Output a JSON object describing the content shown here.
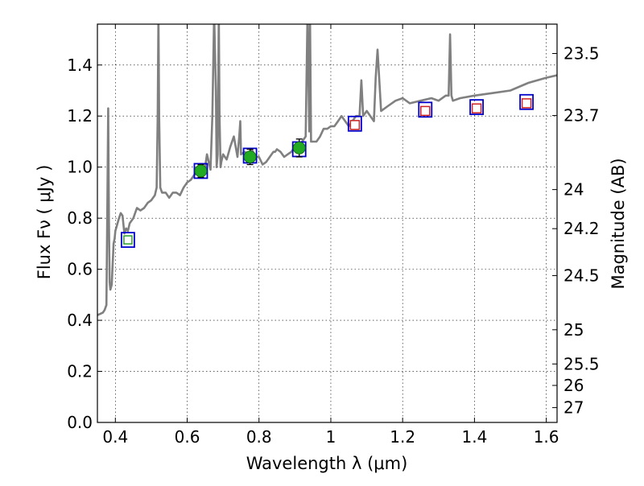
{
  "chart_data": {
    "type": "line",
    "title": "",
    "xlabel": "Wavelength  λ (μm)",
    "ylabel": "Flux  Fν  ( μJy )",
    "y2label": "Magnitude (AB)",
    "xlim": [
      0.35,
      1.63
    ],
    "ylim": [
      0.0,
      1.56
    ],
    "grid": true,
    "x_ticks": [
      "0.4",
      "0.6",
      "0.8",
      "1",
      "1.2",
      "1.4",
      "1.6"
    ],
    "x_tick_values": [
      0.4,
      0.6,
      0.8,
      1.0,
      1.2,
      1.4,
      1.6
    ],
    "y_ticks": [
      "0.0",
      "0.2",
      "0.4",
      "0.6",
      "0.8",
      "1.0",
      "1.2",
      "1.4"
    ],
    "y_tick_values": [
      0.0,
      0.2,
      0.4,
      0.6,
      0.8,
      1.0,
      1.2,
      1.4
    ],
    "mag_ticks": [
      {
        "label": "23.5",
        "flux": 1.445
      },
      {
        "label": "23.7",
        "flux": 1.202
      },
      {
        "label": "24",
        "flux": 0.912
      },
      {
        "label": "24.2",
        "flux": 0.759
      },
      {
        "label": "24.5",
        "flux": 0.575
      },
      {
        "label": "25",
        "flux": 0.363
      },
      {
        "label": "25.5",
        "flux": 0.229
      },
      {
        "label": "26",
        "flux": 0.145
      },
      {
        "label": "27",
        "flux": 0.058
      }
    ],
    "series": [
      {
        "name": "model spectrum",
        "color": "#808080",
        "x": [
          0.35,
          0.365,
          0.37,
          0.375,
          0.378,
          0.38,
          0.382,
          0.384,
          0.386,
          0.388,
          0.39,
          0.395,
          0.398,
          0.4,
          0.41,
          0.415,
          0.42,
          0.425,
          0.43,
          0.435,
          0.44,
          0.45,
          0.46,
          0.47,
          0.48,
          0.49,
          0.5,
          0.51,
          0.515,
          0.518,
          0.52,
          0.522,
          0.525,
          0.53,
          0.54,
          0.55,
          0.56,
          0.57,
          0.58,
          0.59,
          0.6,
          0.61,
          0.62,
          0.63,
          0.64,
          0.65,
          0.655,
          0.66,
          0.665,
          0.67,
          0.675,
          0.68,
          0.682,
          0.685,
          0.688,
          0.69,
          0.693,
          0.695,
          0.7,
          0.71,
          0.72,
          0.73,
          0.74,
          0.745,
          0.748,
          0.75,
          0.76,
          0.77,
          0.78,
          0.79,
          0.8,
          0.81,
          0.82,
          0.83,
          0.84,
          0.845,
          0.85,
          0.86,
          0.87,
          0.88,
          0.89,
          0.9,
          0.91,
          0.92,
          0.93,
          0.935,
          0.94,
          0.942,
          0.945,
          0.95,
          0.96,
          0.97,
          0.98,
          0.99,
          1.0,
          1.01,
          1.02,
          1.03,
          1.05,
          1.07,
          1.08,
          1.085,
          1.09,
          1.1,
          1.11,
          1.12,
          1.125,
          1.13,
          1.14,
          1.16,
          1.18,
          1.2,
          1.22,
          1.25,
          1.28,
          1.3,
          1.32,
          1.328,
          1.332,
          1.336,
          1.34,
          1.36,
          1.4,
          1.45,
          1.5,
          1.55,
          1.6,
          1.63
        ],
        "values": [
          0.42,
          0.43,
          0.44,
          0.46,
          0.9,
          1.23,
          0.8,
          0.55,
          0.52,
          0.53,
          0.54,
          0.7,
          0.72,
          0.75,
          0.8,
          0.82,
          0.81,
          0.74,
          0.76,
          0.75,
          0.78,
          0.8,
          0.84,
          0.83,
          0.84,
          0.86,
          0.87,
          0.89,
          0.92,
          1.2,
          1.6,
          1.2,
          0.92,
          0.9,
          0.9,
          0.88,
          0.9,
          0.9,
          0.89,
          0.92,
          0.94,
          0.95,
          0.97,
          0.98,
          0.99,
          1.0,
          1.05,
          1.02,
          0.99,
          1.2,
          1.6,
          1.3,
          1.0,
          1.05,
          1.6,
          1.2,
          1.0,
          1.02,
          1.05,
          1.03,
          1.08,
          1.12,
          1.04,
          1.12,
          1.18,
          1.05,
          1.06,
          1.05,
          1.07,
          1.04,
          1.04,
          1.01,
          1.02,
          1.04,
          1.06,
          1.06,
          1.07,
          1.06,
          1.04,
          1.05,
          1.06,
          1.08,
          1.09,
          1.1,
          1.12,
          1.6,
          1.14,
          1.6,
          1.1,
          1.1,
          1.1,
          1.12,
          1.15,
          1.15,
          1.16,
          1.16,
          1.18,
          1.2,
          1.16,
          1.2,
          1.2,
          1.34,
          1.2,
          1.22,
          1.2,
          1.18,
          1.35,
          1.46,
          1.22,
          1.24,
          1.26,
          1.27,
          1.25,
          1.26,
          1.27,
          1.26,
          1.28,
          1.28,
          1.52,
          1.28,
          1.26,
          1.27,
          1.28,
          1.29,
          1.3,
          1.33,
          1.35,
          1.36
        ]
      },
      {
        "name": "photometry (blue squares)",
        "color": "#0000cc",
        "x": [
          0.435,
          0.638,
          0.775,
          0.912,
          1.067,
          1.263,
          1.406,
          1.545
        ],
        "values": [
          0.715,
          0.985,
          1.045,
          1.07,
          1.17,
          1.225,
          1.235,
          1.255
        ]
      },
      {
        "name": "model points (green squares)",
        "color": "#2aa02a",
        "x": [
          0.435
        ],
        "values": [
          0.715
        ]
      },
      {
        "name": "model points (red squares)",
        "color": "#cc2222",
        "x": [
          1.067,
          1.263,
          1.406,
          1.545
        ],
        "values": [
          1.165,
          1.22,
          1.23,
          1.25
        ]
      },
      {
        "name": "observed (green circles)",
        "color": "#22aa22",
        "x": [
          0.638,
          0.775,
          0.912
        ],
        "values": [
          0.985,
          1.04,
          1.075
        ],
        "err": [
          0.025,
          0.03,
          0.035
        ]
      }
    ]
  }
}
